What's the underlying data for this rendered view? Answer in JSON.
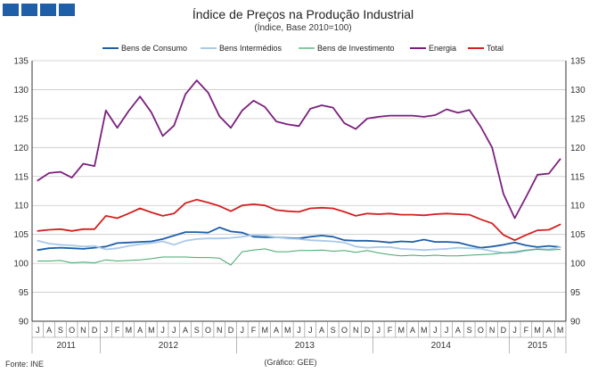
{
  "header": {
    "logo_blocks": 4,
    "brand_color": "#1f5fa8"
  },
  "chart_data": {
    "type": "line",
    "title": "Índice de Preços na Produção Industrial",
    "subtitle": "(Índice, Base 2010=100)",
    "xlabel": "",
    "ylabel": "",
    "ylim": [
      90,
      135
    ],
    "yticks": [
      90,
      95,
      100,
      105,
      110,
      115,
      120,
      125,
      130,
      135
    ],
    "grid": true,
    "legend_position": "top",
    "months": [
      "J",
      "A",
      "S",
      "O",
      "N",
      "D",
      "J",
      "F",
      "M",
      "A",
      "M",
      "J",
      "J",
      "A",
      "S",
      "O",
      "N",
      "D",
      "J",
      "F",
      "M",
      "A",
      "M",
      "J",
      "J",
      "A",
      "S",
      "O",
      "N",
      "D",
      "J",
      "F",
      "M",
      "A",
      "M",
      "J",
      "J",
      "A",
      "S",
      "O",
      "N",
      "D",
      "J",
      "F",
      "M",
      "A",
      "M"
    ],
    "years": [
      {
        "label": "2011",
        "start": 0,
        "end": 5
      },
      {
        "label": "2012",
        "start": 6,
        "end": 17
      },
      {
        "label": "2013",
        "start": 18,
        "end": 29
      },
      {
        "label": "2014",
        "start": 30,
        "end": 41
      },
      {
        "label": "2015",
        "start": 42,
        "end": 46
      }
    ],
    "series": [
      {
        "name": "Bens de Consumo",
        "color": "#1f5fa8",
        "values": [
          102.3,
          102.6,
          102.7,
          102.6,
          102.5,
          102.7,
          102.9,
          103.5,
          103.6,
          103.7,
          103.8,
          104.2,
          104.8,
          105.4,
          105.4,
          105.3,
          106.2,
          105.5,
          105.3,
          104.6,
          104.5,
          104.5,
          104.4,
          104.3,
          104.6,
          104.8,
          104.6,
          104.0,
          103.9,
          103.9,
          103.8,
          103.6,
          103.8,
          103.7,
          104.1,
          103.7,
          103.7,
          103.6,
          103.1,
          102.7,
          102.9,
          103.2,
          103.6,
          103.1,
          102.8,
          103.0,
          102.8
        ]
      },
      {
        "name": "Bens Intermédios",
        "color": "#a9c9e8",
        "values": [
          103.9,
          103.4,
          103.2,
          103.1,
          102.9,
          103.0,
          102.4,
          102.6,
          103.0,
          103.3,
          103.5,
          103.8,
          103.2,
          103.9,
          104.2,
          104.3,
          104.3,
          104.4,
          104.6,
          104.9,
          104.8,
          104.5,
          104.3,
          104.2,
          104.0,
          103.9,
          103.8,
          103.6,
          102.9,
          102.7,
          102.8,
          102.8,
          102.5,
          102.4,
          102.3,
          102.4,
          102.5,
          102.7,
          102.6,
          102.5,
          102.1,
          101.8,
          101.8,
          102.2,
          102.5,
          102.4,
          102.8
        ]
      },
      {
        "name": "Bens de Investimento",
        "color": "#41a86a",
        "values": [
          100.4,
          100.4,
          100.5,
          100.1,
          100.2,
          100.1,
          100.6,
          100.4,
          100.5,
          100.6,
          100.8,
          101.1,
          101.1,
          101.1,
          101.0,
          101.0,
          100.9,
          99.7,
          102.0,
          102.3,
          102.5,
          102.0,
          102.0,
          102.2,
          102.2,
          102.3,
          102.1,
          102.2,
          101.9,
          102.2,
          101.8,
          101.5,
          101.3,
          101.4,
          101.3,
          101.4,
          101.3,
          101.3,
          101.4,
          101.5,
          101.6,
          101.8,
          102.0,
          102.3,
          102.4,
          102.3,
          102.4
        ]
      },
      {
        "name": "Energia",
        "color": "#7b1f7e",
        "values": [
          114.3,
          115.6,
          115.8,
          114.8,
          117.2,
          116.8,
          126.4,
          123.4,
          126.3,
          128.8,
          126.1,
          122.0,
          123.8,
          129.2,
          131.6,
          129.5,
          125.4,
          123.4,
          126.4,
          128.1,
          127.0,
          124.5,
          124.0,
          123.7,
          126.7,
          127.3,
          126.9,
          124.2,
          123.2,
          125.0,
          125.3,
          125.5,
          125.5,
          125.5,
          125.3,
          125.6,
          126.6,
          126.0,
          126.5,
          123.6,
          120.0,
          112.0,
          107.8,
          111.5,
          115.3,
          115.5,
          118.0
        ]
      },
      {
        "name": "Total",
        "color": "#d42020",
        "values": [
          105.6,
          105.8,
          105.9,
          105.6,
          105.9,
          105.9,
          108.2,
          107.8,
          108.6,
          109.5,
          108.8,
          108.2,
          108.6,
          110.4,
          111.0,
          110.5,
          109.9,
          109.0,
          110.0,
          110.2,
          110.0,
          109.2,
          109.0,
          108.9,
          109.5,
          109.6,
          109.5,
          108.9,
          108.2,
          108.6,
          108.5,
          108.6,
          108.4,
          108.4,
          108.3,
          108.5,
          108.6,
          108.5,
          108.4,
          107.6,
          106.9,
          104.9,
          104.0,
          104.9,
          105.7,
          105.8,
          106.7
        ]
      }
    ],
    "notes": {
      "source": "Fonte: INE",
      "graphic": "(Gráfico: GEE)"
    }
  }
}
